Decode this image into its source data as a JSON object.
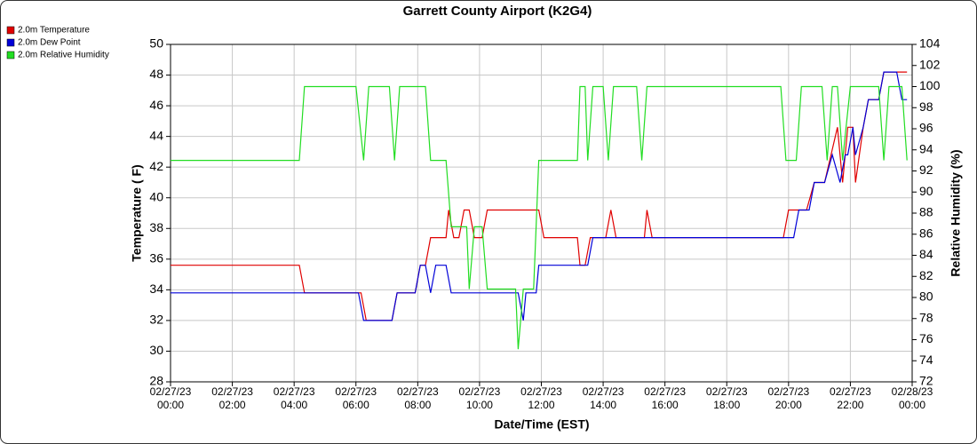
{
  "chart_data": {
    "type": "line",
    "title": "Garrett County Airport (K2G4)",
    "x_label": "Date/Time (EST)",
    "y_label": "Temperature ( F)",
    "y2_label": "Relative Humidity (%)",
    "legend": "upper left",
    "grid": true,
    "xlim": [
      "02/27/23 00:00",
      "02/28/23 00:00"
    ],
    "xticks": [
      "02/27/23 00:00",
      "02/27/23 02:00",
      "02/27/23 04:00",
      "02/27/23 06:00",
      "02/27/23 08:00",
      "02/27/23 10:00",
      "02/27/23 12:00",
      "02/27/23 14:00",
      "02/27/23 16:00",
      "02/27/23 18:00",
      "02/27/23 20:00",
      "02/27/23 22:00",
      "02/28/23 00:00"
    ],
    "ylim": [
      28,
      50
    ],
    "yticks": [
      28,
      30,
      32,
      34,
      36,
      38,
      40,
      42,
      44,
      46,
      48,
      50
    ],
    "y2lim": [
      72,
      104
    ],
    "y2ticks": [
      72,
      74,
      76,
      78,
      80,
      82,
      84,
      86,
      88,
      90,
      92,
      94,
      96,
      98,
      100,
      102,
      104
    ],
    "series": [
      {
        "name": "2.0m Temperature",
        "color": "#e00000",
        "axis": "y",
        "x": [
          "02/27/23 00:00",
          "02/27/23 04:10",
          "02/27/23 04:20",
          "02/27/23 06:10",
          "02/27/23 06:20",
          "02/27/23 07:10",
          "02/27/23 07:20",
          "02/27/23 07:55",
          "02/27/23 08:05",
          "02/27/23 08:15",
          "02/27/23 08:25",
          "02/27/23 08:55",
          "02/27/23 09:00",
          "02/27/23 09:10",
          "02/27/23 09:20",
          "02/27/23 09:30",
          "02/27/23 09:40",
          "02/27/23 09:50",
          "02/27/23 10:05",
          "02/27/23 10:15",
          "02/27/23 11:55",
          "02/27/23 12:05",
          "02/27/23 13:10",
          "02/27/23 13:15",
          "02/27/23 13:25",
          "02/27/23 13:35",
          "02/27/23 14:05",
          "02/27/23 14:15",
          "02/27/23 14:25",
          "02/27/23 15:20",
          "02/27/23 15:25",
          "02/27/23 15:35",
          "02/27/23 19:50",
          "02/27/23 20:00",
          "02/27/23 20:35",
          "02/27/23 20:50",
          "02/27/23 21:10",
          "02/27/23 21:35",
          "02/27/23 21:45",
          "02/27/23 21:55",
          "02/27/23 22:05",
          "02/27/23 22:10",
          "02/27/23 22:25",
          "02/27/23 22:35",
          "02/27/23 22:55",
          "02/27/23 23:05",
          "02/27/23 23:50"
        ],
        "values": [
          35.6,
          35.6,
          33.8,
          33.8,
          32,
          32,
          33.8,
          33.8,
          35.6,
          35.6,
          37.4,
          37.4,
          39.2,
          37.4,
          37.4,
          39.2,
          39.2,
          37.4,
          37.4,
          39.2,
          39.2,
          37.4,
          37.4,
          35.6,
          35.6,
          37.4,
          37.4,
          39.2,
          37.4,
          37.4,
          39.2,
          37.4,
          37.4,
          39.2,
          39.2,
          41,
          41,
          44.6,
          41,
          44.6,
          44.6,
          41,
          44.6,
          46.4,
          46.4,
          48.2,
          48.2
        ]
      },
      {
        "name": "2.0m Dew Point",
        "color": "#0000d8",
        "axis": "y",
        "x": [
          "02/27/23 00:00",
          "02/27/23 06:05",
          "02/27/23 06:15",
          "02/27/23 07:10",
          "02/27/23 07:20",
          "02/27/23 07:55",
          "02/27/23 08:05",
          "02/27/23 08:15",
          "02/27/23 08:25",
          "02/27/23 08:35",
          "02/27/23 08:55",
          "02/27/23 09:05",
          "02/27/23 11:15",
          "02/27/23 11:25",
          "02/27/23 11:30",
          "02/27/23 11:50",
          "02/27/23 11:55",
          "02/27/23 13:30",
          "02/27/23 13:40",
          "02/27/23 20:10",
          "02/27/23 20:20",
          "02/27/23 20:40",
          "02/27/23 20:50",
          "02/27/23 21:10",
          "02/27/23 21:25",
          "02/27/23 21:40",
          "02/27/23 21:50",
          "02/27/23 21:55",
          "02/27/23 22:05",
          "02/27/23 22:10",
          "02/27/23 22:25",
          "02/27/23 22:35",
          "02/27/23 22:55",
          "02/27/23 23:05",
          "02/27/23 23:30",
          "02/27/23 23:40",
          "02/27/23 23:50"
        ],
        "values": [
          33.8,
          33.8,
          32,
          32,
          33.8,
          33.8,
          35.6,
          35.6,
          33.8,
          35.6,
          35.6,
          33.8,
          33.8,
          32,
          33.8,
          33.8,
          35.6,
          35.6,
          37.4,
          37.4,
          39.2,
          39.2,
          41,
          41,
          42.8,
          41,
          42.8,
          42.8,
          44.6,
          42.8,
          44.6,
          46.4,
          46.4,
          48.2,
          48.2,
          46.4,
          46.4
        ]
      },
      {
        "name": "2.0m Relative Humidity",
        "color": "#22dd22",
        "axis": "y2",
        "x": [
          "02/27/23 00:00",
          "02/27/23 04:10",
          "02/27/23 04:20",
          "02/27/23 06:00",
          "02/27/23 06:15",
          "02/27/23 06:25",
          "02/27/23 07:05",
          "02/27/23 07:15",
          "02/27/23 07:25",
          "02/27/23 08:15",
          "02/27/23 08:25",
          "02/27/23 08:55",
          "02/27/23 09:05",
          "02/27/23 09:35",
          "02/27/23 09:40",
          "02/27/23 09:50",
          "02/27/23 10:05",
          "02/27/23 10:15",
          "02/27/23 11:10",
          "02/27/23 11:15",
          "02/27/23 11:25",
          "02/27/23 11:45",
          "02/27/23 11:55",
          "02/27/23 13:10",
          "02/27/23 13:15",
          "02/27/23 13:25",
          "02/27/23 13:30",
          "02/27/23 13:40",
          "02/27/23 14:00",
          "02/27/23 14:10",
          "02/27/23 14:20",
          "02/27/23 15:05",
          "02/27/23 15:15",
          "02/27/23 15:25",
          "02/27/23 19:45",
          "02/27/23 19:55",
          "02/27/23 20:15",
          "02/27/23 20:25",
          "02/27/23 21:05",
          "02/27/23 21:15",
          "02/27/23 21:25",
          "02/27/23 21:35",
          "02/27/23 21:45",
          "02/27/23 22:00",
          "02/27/23 22:55",
          "02/27/23 23:05",
          "02/27/23 23:15",
          "02/27/23 23:40",
          "02/27/23 23:50"
        ],
        "values": [
          93,
          93,
          100,
          100,
          93,
          100,
          100,
          93,
          100,
          100,
          93,
          93,
          86.7,
          86.7,
          80.8,
          86.7,
          86.7,
          80.8,
          80.8,
          75.1,
          80.8,
          80.8,
          93,
          93,
          100,
          100,
          93,
          100,
          100,
          93,
          100,
          100,
          93,
          100,
          100,
          93,
          93,
          100,
          100,
          93,
          100,
          100,
          93,
          100,
          100,
          93,
          100,
          100,
          93
        ]
      }
    ]
  }
}
